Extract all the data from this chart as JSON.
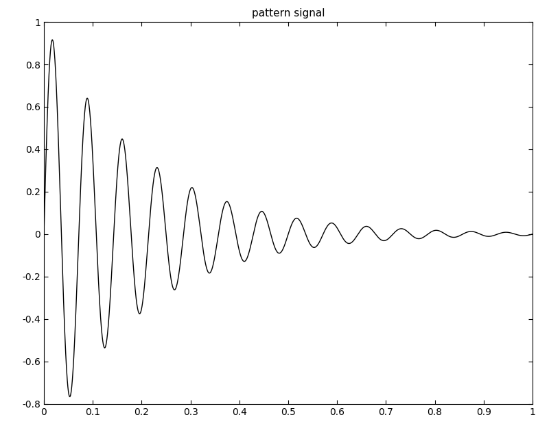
{
  "title": "pattern signal",
  "xlim": [
    0,
    1
  ],
  "ylim": [
    -0.8,
    1.0
  ],
  "xticks": [
    0,
    0.1,
    0.2,
    0.3,
    0.4,
    0.5,
    0.6,
    0.7,
    0.8,
    0.9,
    1
  ],
  "yticks": [
    -0.8,
    -0.6,
    -0.4,
    -0.2,
    0,
    0.2,
    0.4,
    0.6,
    0.8,
    1.0
  ],
  "line_color": "#000000",
  "line_width": 1.0,
  "background_color": "#ffffff",
  "title_fontsize": 11,
  "signal_params": {
    "frequency": 20,
    "decay": 8.0,
    "n_samples": 5000
  }
}
